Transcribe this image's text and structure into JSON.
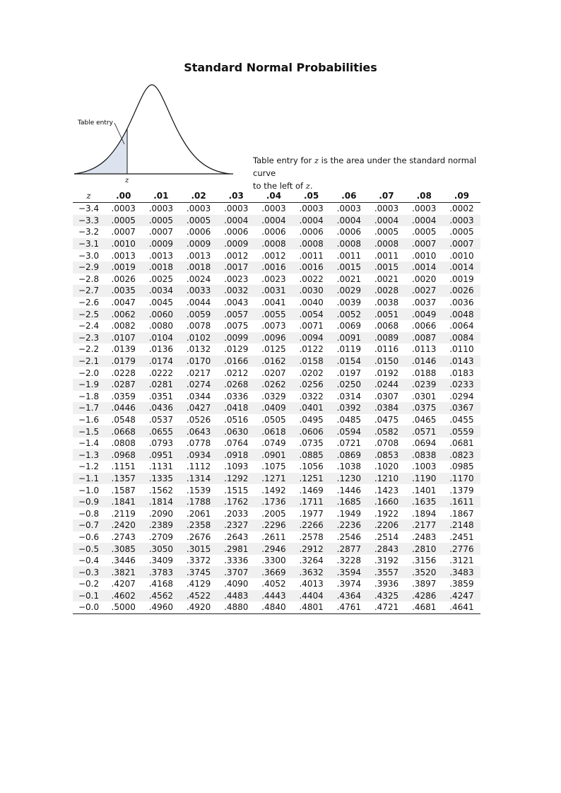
{
  "title": "Standard Normal Probabilities",
  "diagram": {
    "entry_label": "Table entry",
    "z_label": "z"
  },
  "caption": {
    "line1_pre": "Table entry for ",
    "line1_var": "z",
    "line1_post": " is the area under the standard normal curve",
    "line2_pre": "to the left of ",
    "line2_var": "z",
    "line2_post": "."
  },
  "table": {
    "z_header": "z",
    "columns": [
      ".00",
      ".01",
      ".02",
      ".03",
      ".04",
      ".05",
      ".06",
      ".07",
      ".08",
      ".09"
    ],
    "rows": [
      [
        "−3.4",
        ".0003",
        ".0003",
        ".0003",
        ".0003",
        ".0003",
        ".0003",
        ".0003",
        ".0003",
        ".0003",
        ".0002"
      ],
      [
        "−3.3",
        ".0005",
        ".0005",
        ".0005",
        ".0004",
        ".0004",
        ".0004",
        ".0004",
        ".0004",
        ".0004",
        ".0003"
      ],
      [
        "−3.2",
        ".0007",
        ".0007",
        ".0006",
        ".0006",
        ".0006",
        ".0006",
        ".0006",
        ".0005",
        ".0005",
        ".0005"
      ],
      [
        "−3.1",
        ".0010",
        ".0009",
        ".0009",
        ".0009",
        ".0008",
        ".0008",
        ".0008",
        ".0008",
        ".0007",
        ".0007"
      ],
      [
        "−3.0",
        ".0013",
        ".0013",
        ".0013",
        ".0012",
        ".0012",
        ".0011",
        ".0011",
        ".0011",
        ".0010",
        ".0010"
      ],
      [
        "−2.9",
        ".0019",
        ".0018",
        ".0018",
        ".0017",
        ".0016",
        ".0016",
        ".0015",
        ".0015",
        ".0014",
        ".0014"
      ],
      [
        "−2.8",
        ".0026",
        ".0025",
        ".0024",
        ".0023",
        ".0023",
        ".0022",
        ".0021",
        ".0021",
        ".0020",
        ".0019"
      ],
      [
        "−2.7",
        ".0035",
        ".0034",
        ".0033",
        ".0032",
        ".0031",
        ".0030",
        ".0029",
        ".0028",
        ".0027",
        ".0026"
      ],
      [
        "−2.6",
        ".0047",
        ".0045",
        ".0044",
        ".0043",
        ".0041",
        ".0040",
        ".0039",
        ".0038",
        ".0037",
        ".0036"
      ],
      [
        "−2.5",
        ".0062",
        ".0060",
        ".0059",
        ".0057",
        ".0055",
        ".0054",
        ".0052",
        ".0051",
        ".0049",
        ".0048"
      ],
      [
        "−2.4",
        ".0082",
        ".0080",
        ".0078",
        ".0075",
        ".0073",
        ".0071",
        ".0069",
        ".0068",
        ".0066",
        ".0064"
      ],
      [
        "−2.3",
        ".0107",
        ".0104",
        ".0102",
        ".0099",
        ".0096",
        ".0094",
        ".0091",
        ".0089",
        ".0087",
        ".0084"
      ],
      [
        "−2.2",
        ".0139",
        ".0136",
        ".0132",
        ".0129",
        ".0125",
        ".0122",
        ".0119",
        ".0116",
        ".0113",
        ".0110"
      ],
      [
        "−2.1",
        ".0179",
        ".0174",
        ".0170",
        ".0166",
        ".0162",
        ".0158",
        ".0154",
        ".0150",
        ".0146",
        ".0143"
      ],
      [
        "−2.0",
        ".0228",
        ".0222",
        ".0217",
        ".0212",
        ".0207",
        ".0202",
        ".0197",
        ".0192",
        ".0188",
        ".0183"
      ],
      [
        "−1.9",
        ".0287",
        ".0281",
        ".0274",
        ".0268",
        ".0262",
        ".0256",
        ".0250",
        ".0244",
        ".0239",
        ".0233"
      ],
      [
        "−1.8",
        ".0359",
        ".0351",
        ".0344",
        ".0336",
        ".0329",
        ".0322",
        ".0314",
        ".0307",
        ".0301",
        ".0294"
      ],
      [
        "−1.7",
        ".0446",
        ".0436",
        ".0427",
        ".0418",
        ".0409",
        ".0401",
        ".0392",
        ".0384",
        ".0375",
        ".0367"
      ],
      [
        "−1.6",
        ".0548",
        ".0537",
        ".0526",
        ".0516",
        ".0505",
        ".0495",
        ".0485",
        ".0475",
        ".0465",
        ".0455"
      ],
      [
        "−1.5",
        ".0668",
        ".0655",
        ".0643",
        ".0630",
        ".0618",
        ".0606",
        ".0594",
        ".0582",
        ".0571",
        ".0559"
      ],
      [
        "−1.4",
        ".0808",
        ".0793",
        ".0778",
        ".0764",
        ".0749",
        ".0735",
        ".0721",
        ".0708",
        ".0694",
        ".0681"
      ],
      [
        "−1.3",
        ".0968",
        ".0951",
        ".0934",
        ".0918",
        ".0901",
        ".0885",
        ".0869",
        ".0853",
        ".0838",
        ".0823"
      ],
      [
        "−1.2",
        ".1151",
        ".1131",
        ".1112",
        ".1093",
        ".1075",
        ".1056",
        ".1038",
        ".1020",
        ".1003",
        ".0985"
      ],
      [
        "−1.1",
        ".1357",
        ".1335",
        ".1314",
        ".1292",
        ".1271",
        ".1251",
        ".1230",
        ".1210",
        ".1190",
        ".1170"
      ],
      [
        "−1.0",
        ".1587",
        ".1562",
        ".1539",
        ".1515",
        ".1492",
        ".1469",
        ".1446",
        ".1423",
        ".1401",
        ".1379"
      ],
      [
        "−0.9",
        ".1841",
        ".1814",
        ".1788",
        ".1762",
        ".1736",
        ".1711",
        ".1685",
        ".1660",
        ".1635",
        ".1611"
      ],
      [
        "−0.8",
        ".2119",
        ".2090",
        ".2061",
        ".2033",
        ".2005",
        ".1977",
        ".1949",
        ".1922",
        ".1894",
        ".1867"
      ],
      [
        "−0.7",
        ".2420",
        ".2389",
        ".2358",
        ".2327",
        ".2296",
        ".2266",
        ".2236",
        ".2206",
        ".2177",
        ".2148"
      ],
      [
        "−0.6",
        ".2743",
        ".2709",
        ".2676",
        ".2643",
        ".2611",
        ".2578",
        ".2546",
        ".2514",
        ".2483",
        ".2451"
      ],
      [
        "−0.5",
        ".3085",
        ".3050",
        ".3015",
        ".2981",
        ".2946",
        ".2912",
        ".2877",
        ".2843",
        ".2810",
        ".2776"
      ],
      [
        "−0.4",
        ".3446",
        ".3409",
        ".3372",
        ".3336",
        ".3300",
        ".3264",
        ".3228",
        ".3192",
        ".3156",
        ".3121"
      ],
      [
        "−0.3",
        ".3821",
        ".3783",
        ".3745",
        ".3707",
        ".3669",
        ".3632",
        ".3594",
        ".3557",
        ".3520",
        ".3483"
      ],
      [
        "−0.2",
        ".4207",
        ".4168",
        ".4129",
        ".4090",
        ".4052",
        ".4013",
        ".3974",
        ".3936",
        ".3897",
        ".3859"
      ],
      [
        "−0.1",
        ".4602",
        ".4562",
        ".4522",
        ".4483",
        ".4443",
        ".4404",
        ".4364",
        ".4325",
        ".4286",
        ".4247"
      ],
      [
        "−0.0",
        ".5000",
        ".4960",
        ".4920",
        ".4880",
        ".4840",
        ".4801",
        ".4761",
        ".4721",
        ".4681",
        ".4641"
      ]
    ]
  }
}
